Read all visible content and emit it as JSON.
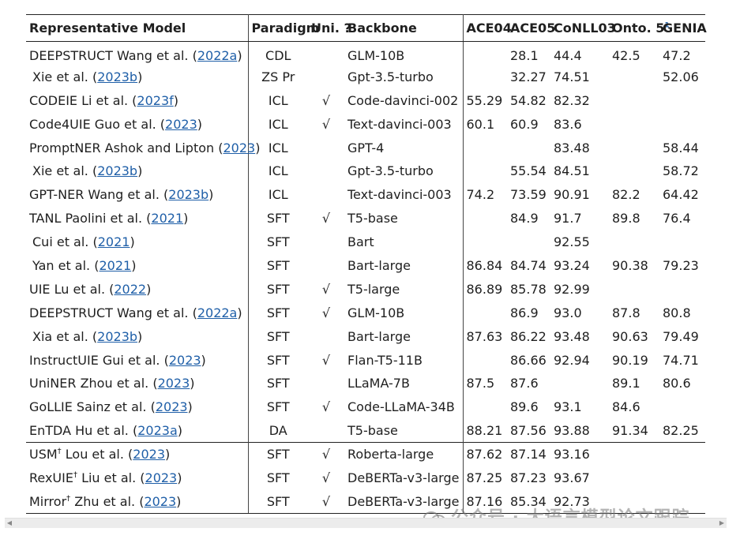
{
  "table": {
    "headers": [
      "Representative Model",
      "Paradigm",
      "Uni. ?",
      "Backbone",
      "ACE04",
      "ACE05",
      "CoNLL03",
      "Onto. 5",
      "GENIA"
    ],
    "onto_footnote": "1",
    "check": "√",
    "rows": [
      {
        "name": "DEEPSTRUCT Wang et al.",
        "indent": false,
        "dagger": false,
        "cite": "2022a",
        "paradigm": "CDL",
        "uni": "",
        "backbone": "GLM-10B",
        "ace04": "",
        "ace05": "28.1",
        "conll03": "44.4",
        "onto5": "42.5",
        "genia": "47.2"
      },
      {
        "name": "Xie et al.",
        "indent": true,
        "dagger": false,
        "cite": "2023b",
        "paradigm": "ZS Pr",
        "uni": "",
        "backbone": "Gpt-3.5-turbo",
        "ace04": "",
        "ace05": "32.27",
        "conll03": "74.51",
        "onto5": "",
        "genia": "52.06"
      },
      {
        "name": "CODEIE Li et al.",
        "indent": false,
        "dagger": false,
        "cite": "2023f",
        "paradigm": "ICL",
        "uni": "√",
        "backbone": "Code-davinci-002",
        "ace04": "55.29",
        "ace05": "54.82",
        "conll03": "82.32",
        "onto5": "",
        "genia": ""
      },
      {
        "name": "Code4UIE Guo et al.",
        "indent": false,
        "dagger": false,
        "cite": "2023",
        "paradigm": "ICL",
        "uni": "√",
        "backbone": "Text-davinci-003",
        "ace04": "60.1",
        "ace05": "60.9",
        "conll03": "83.6",
        "onto5": "",
        "genia": ""
      },
      {
        "name": "PromptNER Ashok and Lipton",
        "indent": false,
        "dagger": false,
        "cite": "2023",
        "paradigm": "ICL",
        "uni": "",
        "backbone": "GPT-4",
        "ace04": "",
        "ace05": "",
        "conll03": "83.48",
        "onto5": "",
        "genia": "58.44"
      },
      {
        "name": "Xie et al.",
        "indent": true,
        "dagger": false,
        "cite": "2023b",
        "paradigm": "ICL",
        "uni": "",
        "backbone": "Gpt-3.5-turbo",
        "ace04": "",
        "ace05": "55.54",
        "conll03": "84.51",
        "onto5": "",
        "genia": "58.72"
      },
      {
        "name": "GPT-NER Wang et al.",
        "indent": false,
        "dagger": false,
        "cite": "2023b",
        "paradigm": "ICL",
        "uni": "",
        "backbone": "Text-davinci-003",
        "ace04": "74.2",
        "ace05": "73.59",
        "conll03": "90.91",
        "onto5": "82.2",
        "genia": "64.42"
      },
      {
        "name": "TANL Paolini et al.",
        "indent": false,
        "dagger": false,
        "cite": "2021",
        "paradigm": "SFT",
        "uni": "√",
        "backbone": "T5-base",
        "ace04": "",
        "ace05": "84.9",
        "conll03": "91.7",
        "onto5": "89.8",
        "genia": "76.4"
      },
      {
        "name": "Cui et al.",
        "indent": true,
        "dagger": false,
        "cite": "2021",
        "paradigm": "SFT",
        "uni": "",
        "backbone": "Bart",
        "ace04": "",
        "ace05": "",
        "conll03": "92.55",
        "onto5": "",
        "genia": ""
      },
      {
        "name": "Yan et al.",
        "indent": true,
        "dagger": false,
        "cite": "2021",
        "paradigm": "SFT",
        "uni": "",
        "backbone": "Bart-large",
        "ace04": "86.84",
        "ace05": "84.74",
        "conll03": "93.24",
        "onto5": "90.38",
        "genia": "79.23"
      },
      {
        "name": "UIE Lu et al.",
        "indent": false,
        "dagger": false,
        "cite": "2022",
        "paradigm": "SFT",
        "uni": "√",
        "backbone": "T5-large",
        "ace04": "86.89",
        "ace05": "85.78",
        "conll03": "92.99",
        "onto5": "",
        "genia": ""
      },
      {
        "name": "DEEPSTRUCT Wang et al.",
        "indent": false,
        "dagger": false,
        "cite": "2022a",
        "paradigm": "SFT",
        "uni": "√",
        "backbone": "GLM-10B",
        "ace04": "",
        "ace05": "86.9",
        "conll03": "93.0",
        "onto5": "87.8",
        "genia": "80.8"
      },
      {
        "name": "Xia et al.",
        "indent": true,
        "dagger": false,
        "cite": "2023b",
        "paradigm": "SFT",
        "uni": "",
        "backbone": "Bart-large",
        "ace04": "87.63",
        "ace05": "86.22",
        "conll03": "93.48",
        "onto5": "90.63",
        "genia": "79.49"
      },
      {
        "name": "InstructUIE Gui et al.",
        "indent": false,
        "dagger": false,
        "cite": "2023",
        "paradigm": "SFT",
        "uni": "√",
        "backbone": "Flan-T5-11B",
        "ace04": "",
        "ace05": "86.66",
        "conll03": "92.94",
        "onto5": "90.19",
        "genia": "74.71"
      },
      {
        "name": "UniNER Zhou et al.",
        "indent": false,
        "dagger": false,
        "cite": "2023",
        "paradigm": "SFT",
        "uni": "",
        "backbone": "LLaMA-7B",
        "ace04": "87.5",
        "ace05": "87.6",
        "conll03": "",
        "onto5": "89.1",
        "genia": "80.6"
      },
      {
        "name": "GoLLIE Sainz et al.",
        "indent": false,
        "dagger": false,
        "cite": "2023",
        "paradigm": "SFT",
        "uni": "√",
        "backbone": "Code-LLaMA-34B",
        "ace04": "",
        "ace05": "89.6",
        "conll03": "93.1",
        "onto5": "84.6",
        "genia": ""
      },
      {
        "name": "EnTDA Hu et al.",
        "indent": false,
        "dagger": false,
        "cite": "2023a",
        "paradigm": "DA",
        "uni": "",
        "backbone": "T5-base",
        "ace04": "88.21",
        "ace05": "87.56",
        "conll03": "93.88",
        "onto5": "91.34",
        "genia": "82.25"
      },
      {
        "name": "USM",
        "indent": false,
        "dagger": true,
        "author": "Lou et al.",
        "cite": "2023",
        "paradigm": "SFT",
        "uni": "√",
        "backbone": "Roberta-large",
        "ace04": "87.62",
        "ace05": "87.14",
        "conll03": "93.16",
        "onto5": "",
        "genia": ""
      },
      {
        "name": "RexUIE",
        "indent": false,
        "dagger": true,
        "author": "Liu et al.",
        "cite": "2023",
        "paradigm": "SFT",
        "uni": "√",
        "backbone": "DeBERTa-v3-large",
        "ace04": "87.25",
        "ace05": "87.23",
        "conll03": "93.67",
        "onto5": "",
        "genia": ""
      },
      {
        "name": "Mirror",
        "indent": false,
        "dagger": true,
        "author": "Zhu et al.",
        "cite": "2023",
        "paradigm": "SFT",
        "uni": "√",
        "backbone": "DeBERTa-v3-large",
        "ace04": "87.16",
        "ace05": "85.34",
        "conll03": "92.73",
        "onto5": "",
        "genia": ""
      }
    ],
    "second_section_start": 17
  },
  "watermark": "公众号 · 大语言模型论文跟踪"
}
